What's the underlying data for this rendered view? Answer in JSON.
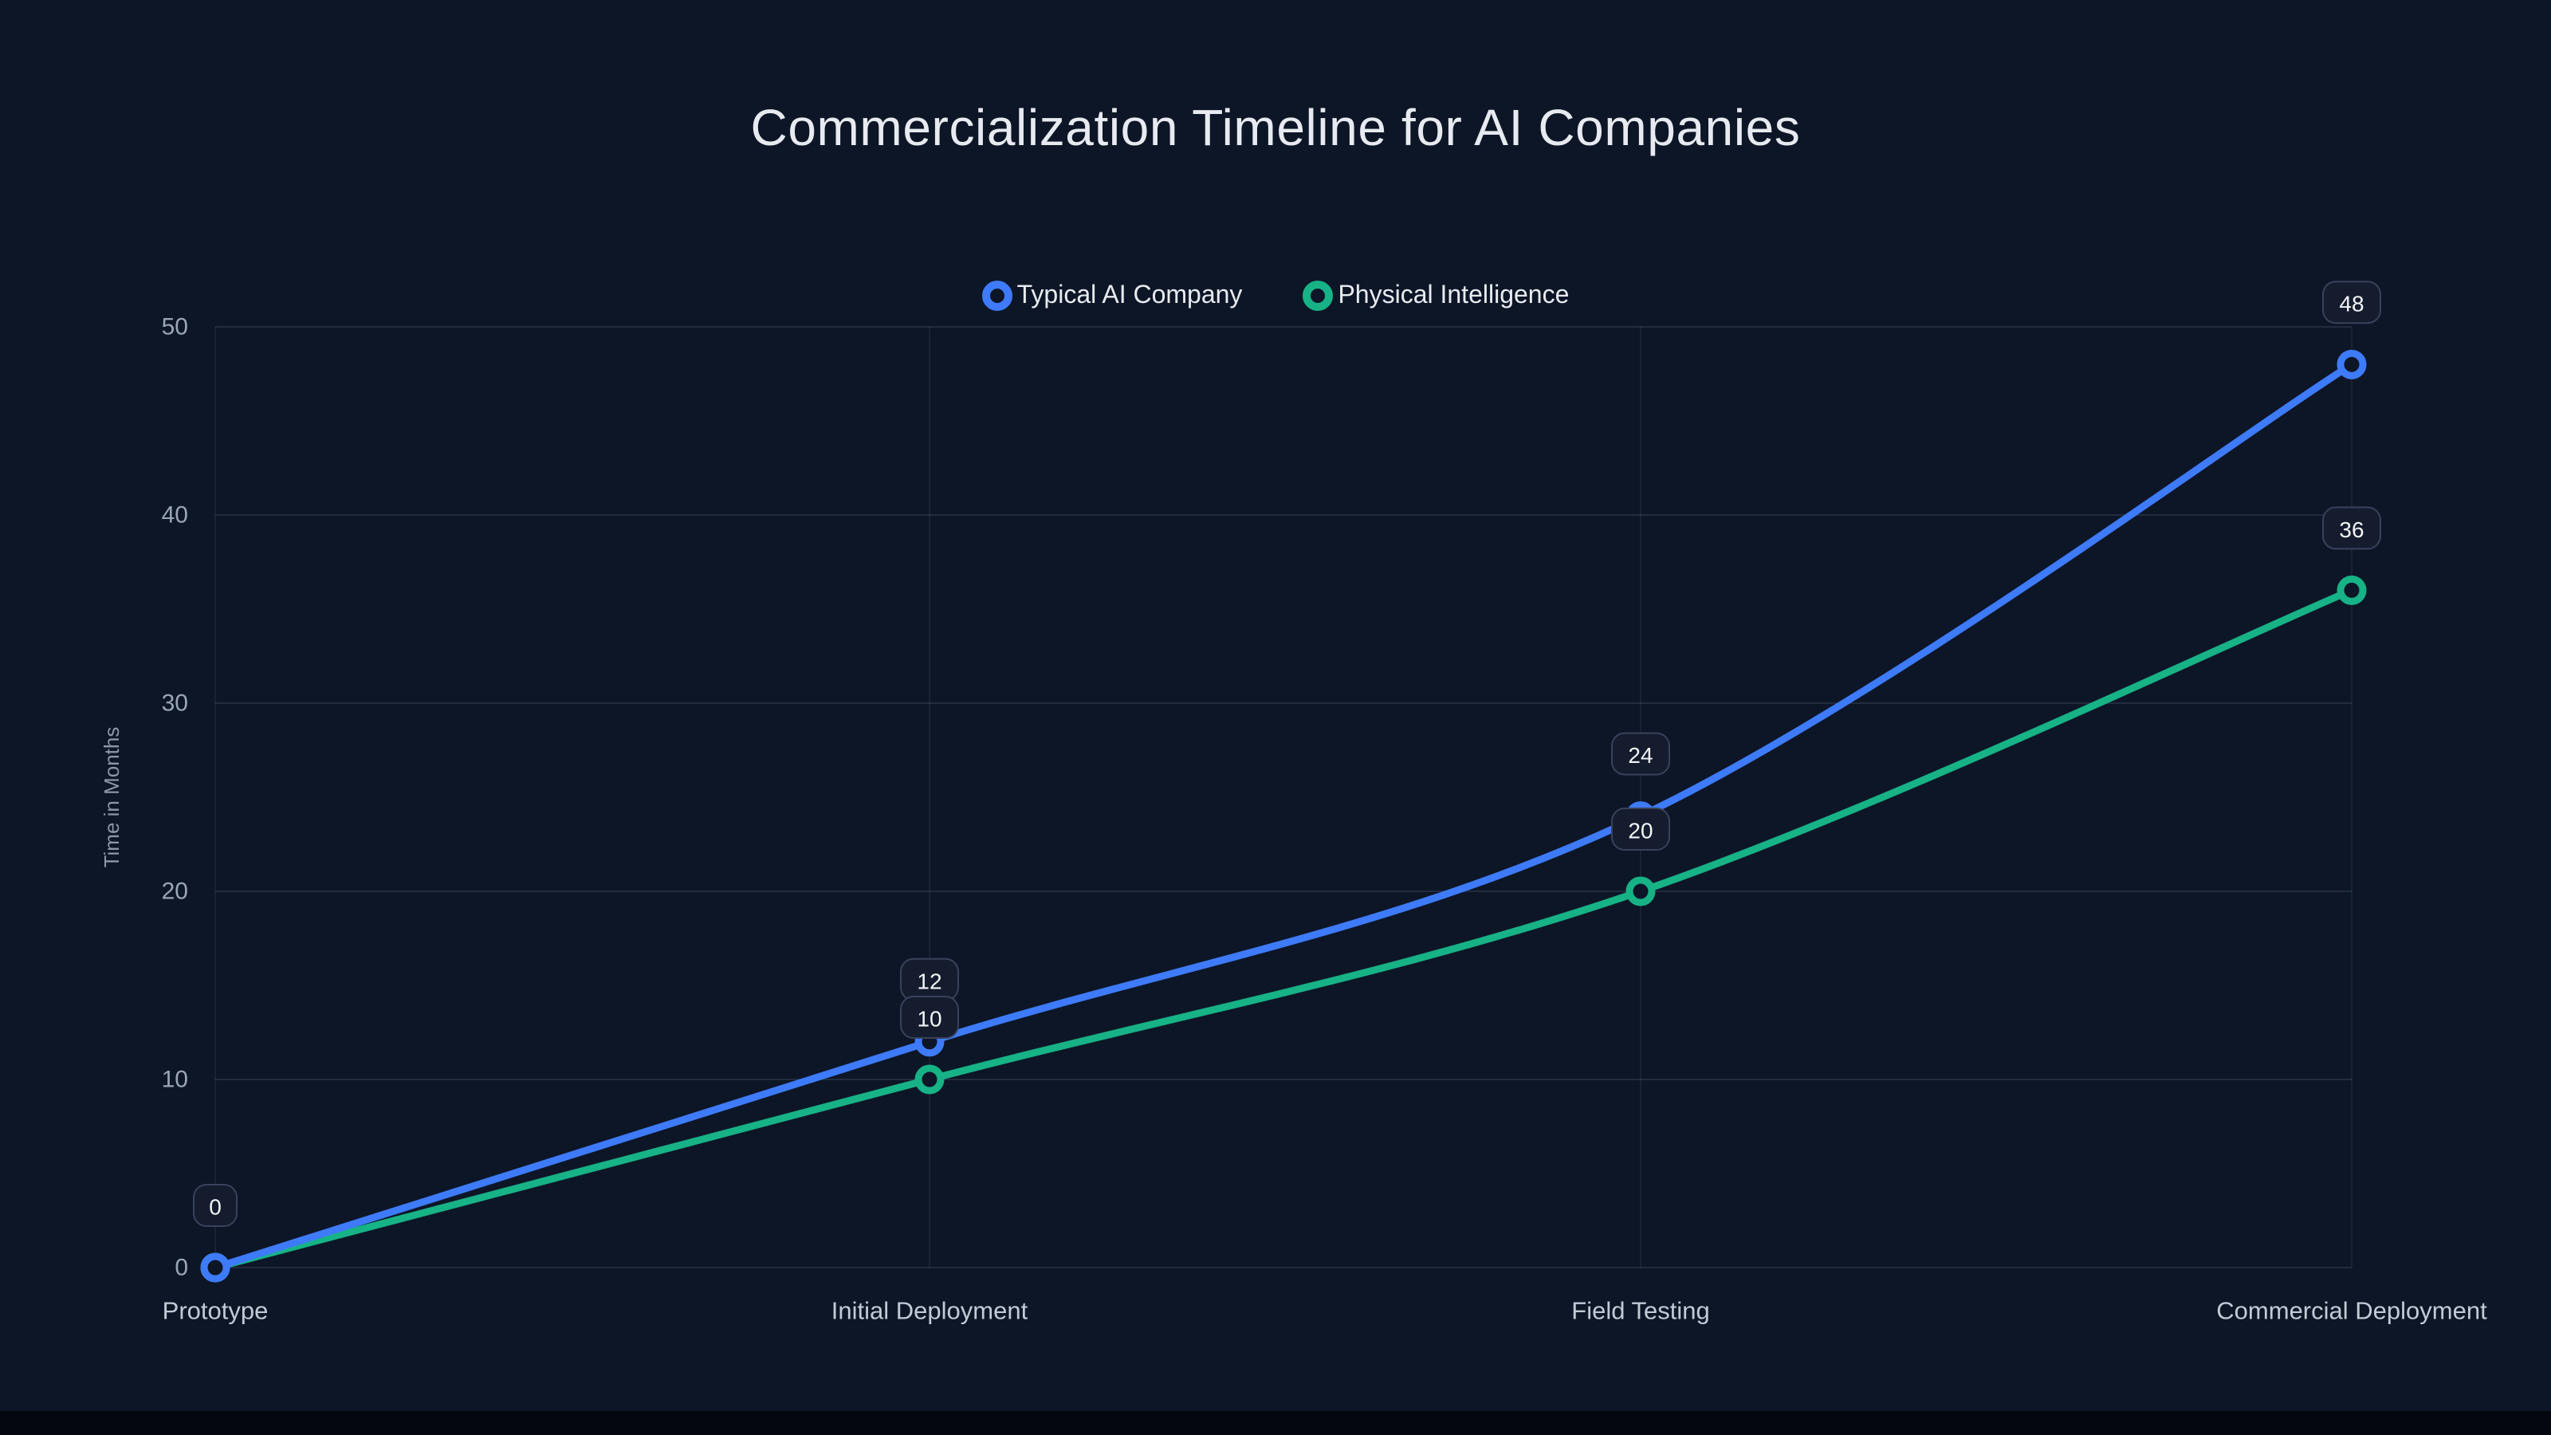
{
  "title": "Commercialization Timeline for AI Companies",
  "chart_data": {
    "type": "line",
    "categories": [
      "Prototype",
      "Initial Deployment",
      "Field Testing",
      "Commercial Deployment"
    ],
    "series": [
      {
        "name": "Typical AI Company",
        "color": "#3E7BFA",
        "values": [
          0,
          12,
          24,
          48
        ]
      },
      {
        "name": "Physical Intelligence",
        "color": "#17B286",
        "values": [
          0,
          10,
          20,
          36
        ]
      }
    ],
    "xlabel": "",
    "ylabel": "Time in Months",
    "ylim": [
      0,
      50
    ],
    "yticks": [
      0,
      10,
      20,
      30,
      40,
      50
    ],
    "grid": true,
    "legend_position": "top",
    "point_labels": [
      {
        "series": "Typical AI Company",
        "labels": [
          "0",
          "12",
          "24",
          "48"
        ]
      },
      {
        "series": "Physical Intelligence",
        "labels": [
          "0",
          "10",
          "20",
          "36"
        ]
      }
    ]
  },
  "legend": {
    "items": [
      {
        "label": "Typical AI Company",
        "marker": "ring-icon",
        "color": "#3E7BFA"
      },
      {
        "label": "Physical Intelligence",
        "marker": "ring-icon",
        "color": "#17B286"
      }
    ]
  },
  "colors": {
    "background": "#0D1627",
    "grid": "rgba(148,163,184,0.16)",
    "grid_vertical": "rgba(148,163,184,0.09)",
    "y_tick_text": "#9AA5B5",
    "x_tick_text": "#C3CAD7",
    "title_text": "#E7EAF0",
    "pill_bg": "#141C2E",
    "pill_border": "#39425A",
    "pill_text": "#F2F4F8"
  }
}
